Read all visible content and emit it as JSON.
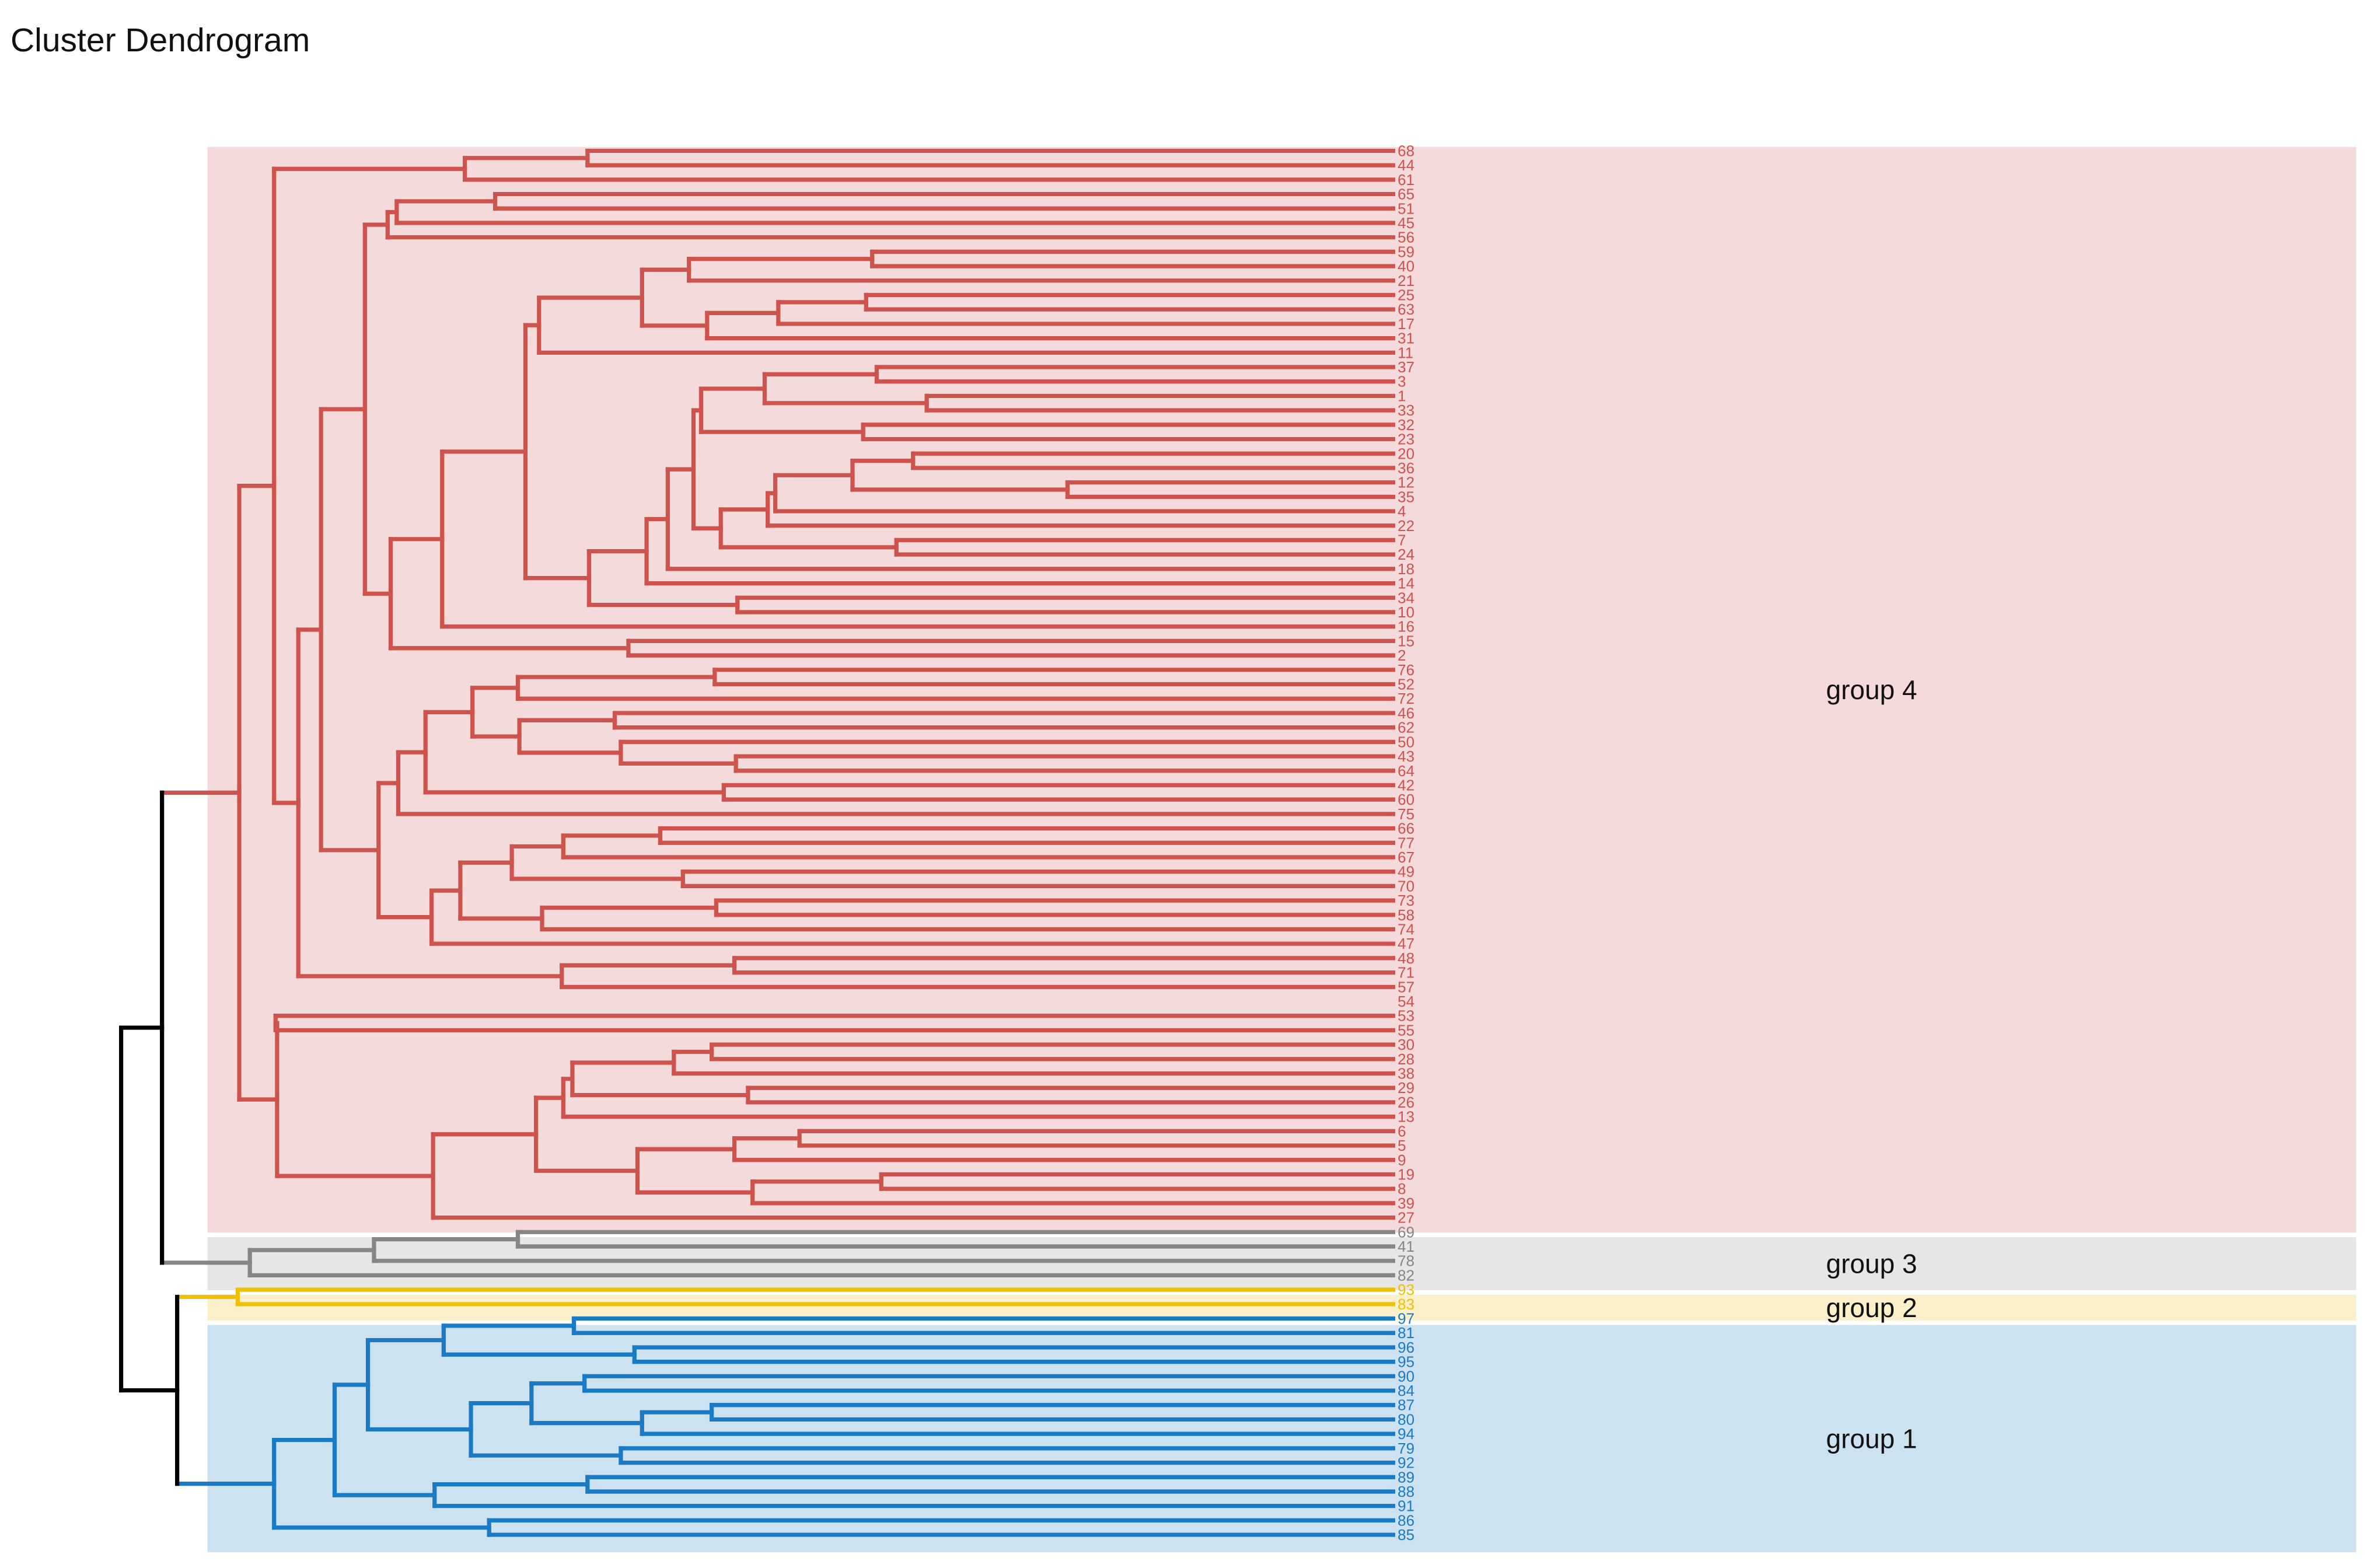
{
  "title": "Cluster Dendrogram",
  "dendrogram": {
    "orientation": "leaves-right",
    "colors": {
      "group1": "#1B7AC4",
      "group2": "#EFC000",
      "group3": "#868686",
      "group4": "#CD534C",
      "root": "#000000"
    },
    "groups": [
      {
        "key": "group4",
        "label": "group 4",
        "color": "#CD534C",
        "fill": "#F4DADA",
        "leaves": [
          "68",
          "44",
          "61",
          "65",
          "51",
          "45",
          "56",
          "59",
          "40",
          "21",
          "25",
          "63",
          "17",
          "31",
          "11",
          "37",
          "3",
          "1",
          "33",
          "32",
          "23",
          "20",
          "36",
          "12",
          "35",
          "4",
          "22",
          "7",
          "24",
          "18",
          "14",
          "34",
          "10",
          "16",
          "15",
          "2",
          "76",
          "52",
          "72",
          "46",
          "62",
          "50",
          "43",
          "64",
          "42",
          "60",
          "75",
          "66",
          "77",
          "67",
          "49",
          "70",
          "73",
          "58",
          "74",
          "47",
          "48",
          "71",
          "57",
          "54",
          "53",
          "55",
          "30",
          "28",
          "38",
          "29",
          "26",
          "13",
          "6",
          "5",
          "9",
          "19",
          "8",
          "39",
          "27"
        ]
      },
      {
        "key": "group3",
        "label": "group 3",
        "color": "#868686",
        "fill": "#E6E6E6",
        "leaves": [
          "69",
          "41",
          "78",
          "82"
        ]
      },
      {
        "key": "group2",
        "label": "group 2",
        "color": "#EFC000",
        "fill": "#FBF0C9",
        "leaves": [
          "93",
          "83"
        ]
      },
      {
        "key": "group1",
        "label": "group 1",
        "color": "#1B7AC4",
        "fill": "#CDE2F1",
        "leaves": [
          "97",
          "81",
          "96",
          "95",
          "90",
          "84",
          "87",
          "80",
          "94",
          "79",
          "92",
          "89",
          "88",
          "91",
          "86",
          "85"
        ]
      }
    ]
  }
}
